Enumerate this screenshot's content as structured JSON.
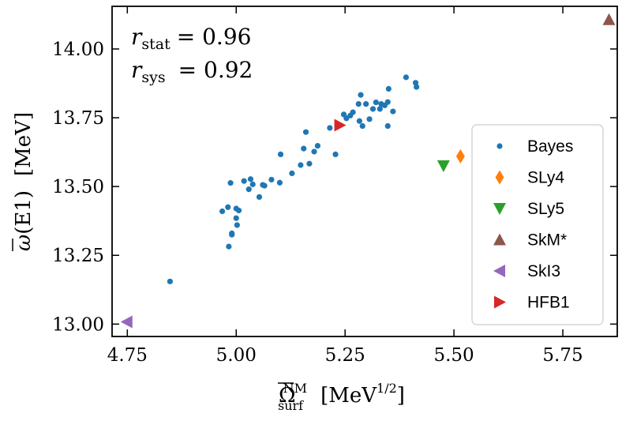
{
  "chart_data": {
    "type": "scatter",
    "xlabel": "Ω̄ surf NM [MeV 1/2]",
    "xlabel_parts": {
      "symbol": "Ω",
      "sup": "NM",
      "sub": "surf",
      "unit_open": "[MeV",
      "unit_sup": "1/2",
      "unit_close": "]"
    },
    "ylabel": "ω̄(E1) [MeV]",
    "ylabel_parts": {
      "symbol": "ω",
      "arg": "(E1)",
      "unit": "[MeV]"
    },
    "xlim": [
      4.715,
      5.875
    ],
    "ylim": [
      12.955,
      14.155
    ],
    "xticks": [
      "4.75",
      "5.00",
      "5.25",
      "5.50",
      "5.75"
    ],
    "yticks": [
      "13.00",
      "13.25",
      "13.50",
      "13.75",
      "14.00"
    ],
    "grid": false,
    "legend_position": "lower-right",
    "annotations": [
      {
        "symbol": "r",
        "sub": "stat",
        "value": "= 0.96"
      },
      {
        "symbol": "r",
        "sub": "sys",
        "value": "= 0.92"
      }
    ],
    "series": [
      {
        "name": "Bayes",
        "marker": "circle",
        "color": "#1f77b4",
        "x": [
          4.848,
          4.968,
          4.983,
          4.981,
          4.987,
          4.99,
          5.0,
          5.0,
          5.002,
          5.006,
          5.018,
          5.029,
          5.033,
          5.038,
          5.053,
          5.061,
          5.065,
          5.081,
          5.1,
          5.102,
          5.128,
          5.148,
          5.155,
          5.16,
          5.168,
          5.179,
          5.187,
          5.215,
          5.228,
          5.247,
          5.253,
          5.262,
          5.268,
          5.281,
          5.283,
          5.286,
          5.29,
          5.298,
          5.306,
          5.314,
          5.321,
          5.33,
          5.333,
          5.341,
          5.348,
          5.348,
          5.35,
          5.36,
          5.39,
          5.412,
          5.414,
          4.99
        ],
        "y": [
          13.155,
          13.41,
          13.282,
          13.425,
          13.513,
          13.33,
          13.42,
          13.385,
          13.36,
          13.413,
          13.52,
          13.49,
          13.527,
          13.508,
          13.462,
          13.506,
          13.503,
          13.525,
          13.514,
          13.617,
          13.548,
          13.578,
          13.638,
          13.698,
          13.583,
          13.627,
          13.648,
          13.713,
          13.617,
          13.762,
          13.748,
          13.758,
          13.77,
          13.8,
          13.738,
          13.833,
          13.72,
          13.8,
          13.745,
          13.782,
          13.806,
          13.782,
          13.8,
          13.795,
          13.72,
          13.807,
          13.855,
          13.773,
          13.897,
          13.877,
          13.862,
          13.325
        ]
      },
      {
        "name": "SLy4",
        "marker": "thin_diamond",
        "color": "#ff7f0e",
        "x": [
          5.515
        ],
        "y": [
          13.61
        ]
      },
      {
        "name": "SLy5",
        "marker": "triangle_down",
        "color": "#2ca02c",
        "x": [
          5.476
        ],
        "y": [
          13.575
        ]
      },
      {
        "name": "SkM*",
        "marker": "triangle_up",
        "color": "#8c564b",
        "x": [
          5.856
        ],
        "y": [
          14.107
        ]
      },
      {
        "name": "SkI3",
        "marker": "triangle_left",
        "color": "#9467bd",
        "x": [
          4.749
        ],
        "y": [
          13.008
        ]
      },
      {
        "name": "HFB1",
        "marker": "triangle_right",
        "color": "#d62728",
        "x": [
          5.238
        ],
        "y": [
          13.723
        ]
      }
    ]
  }
}
